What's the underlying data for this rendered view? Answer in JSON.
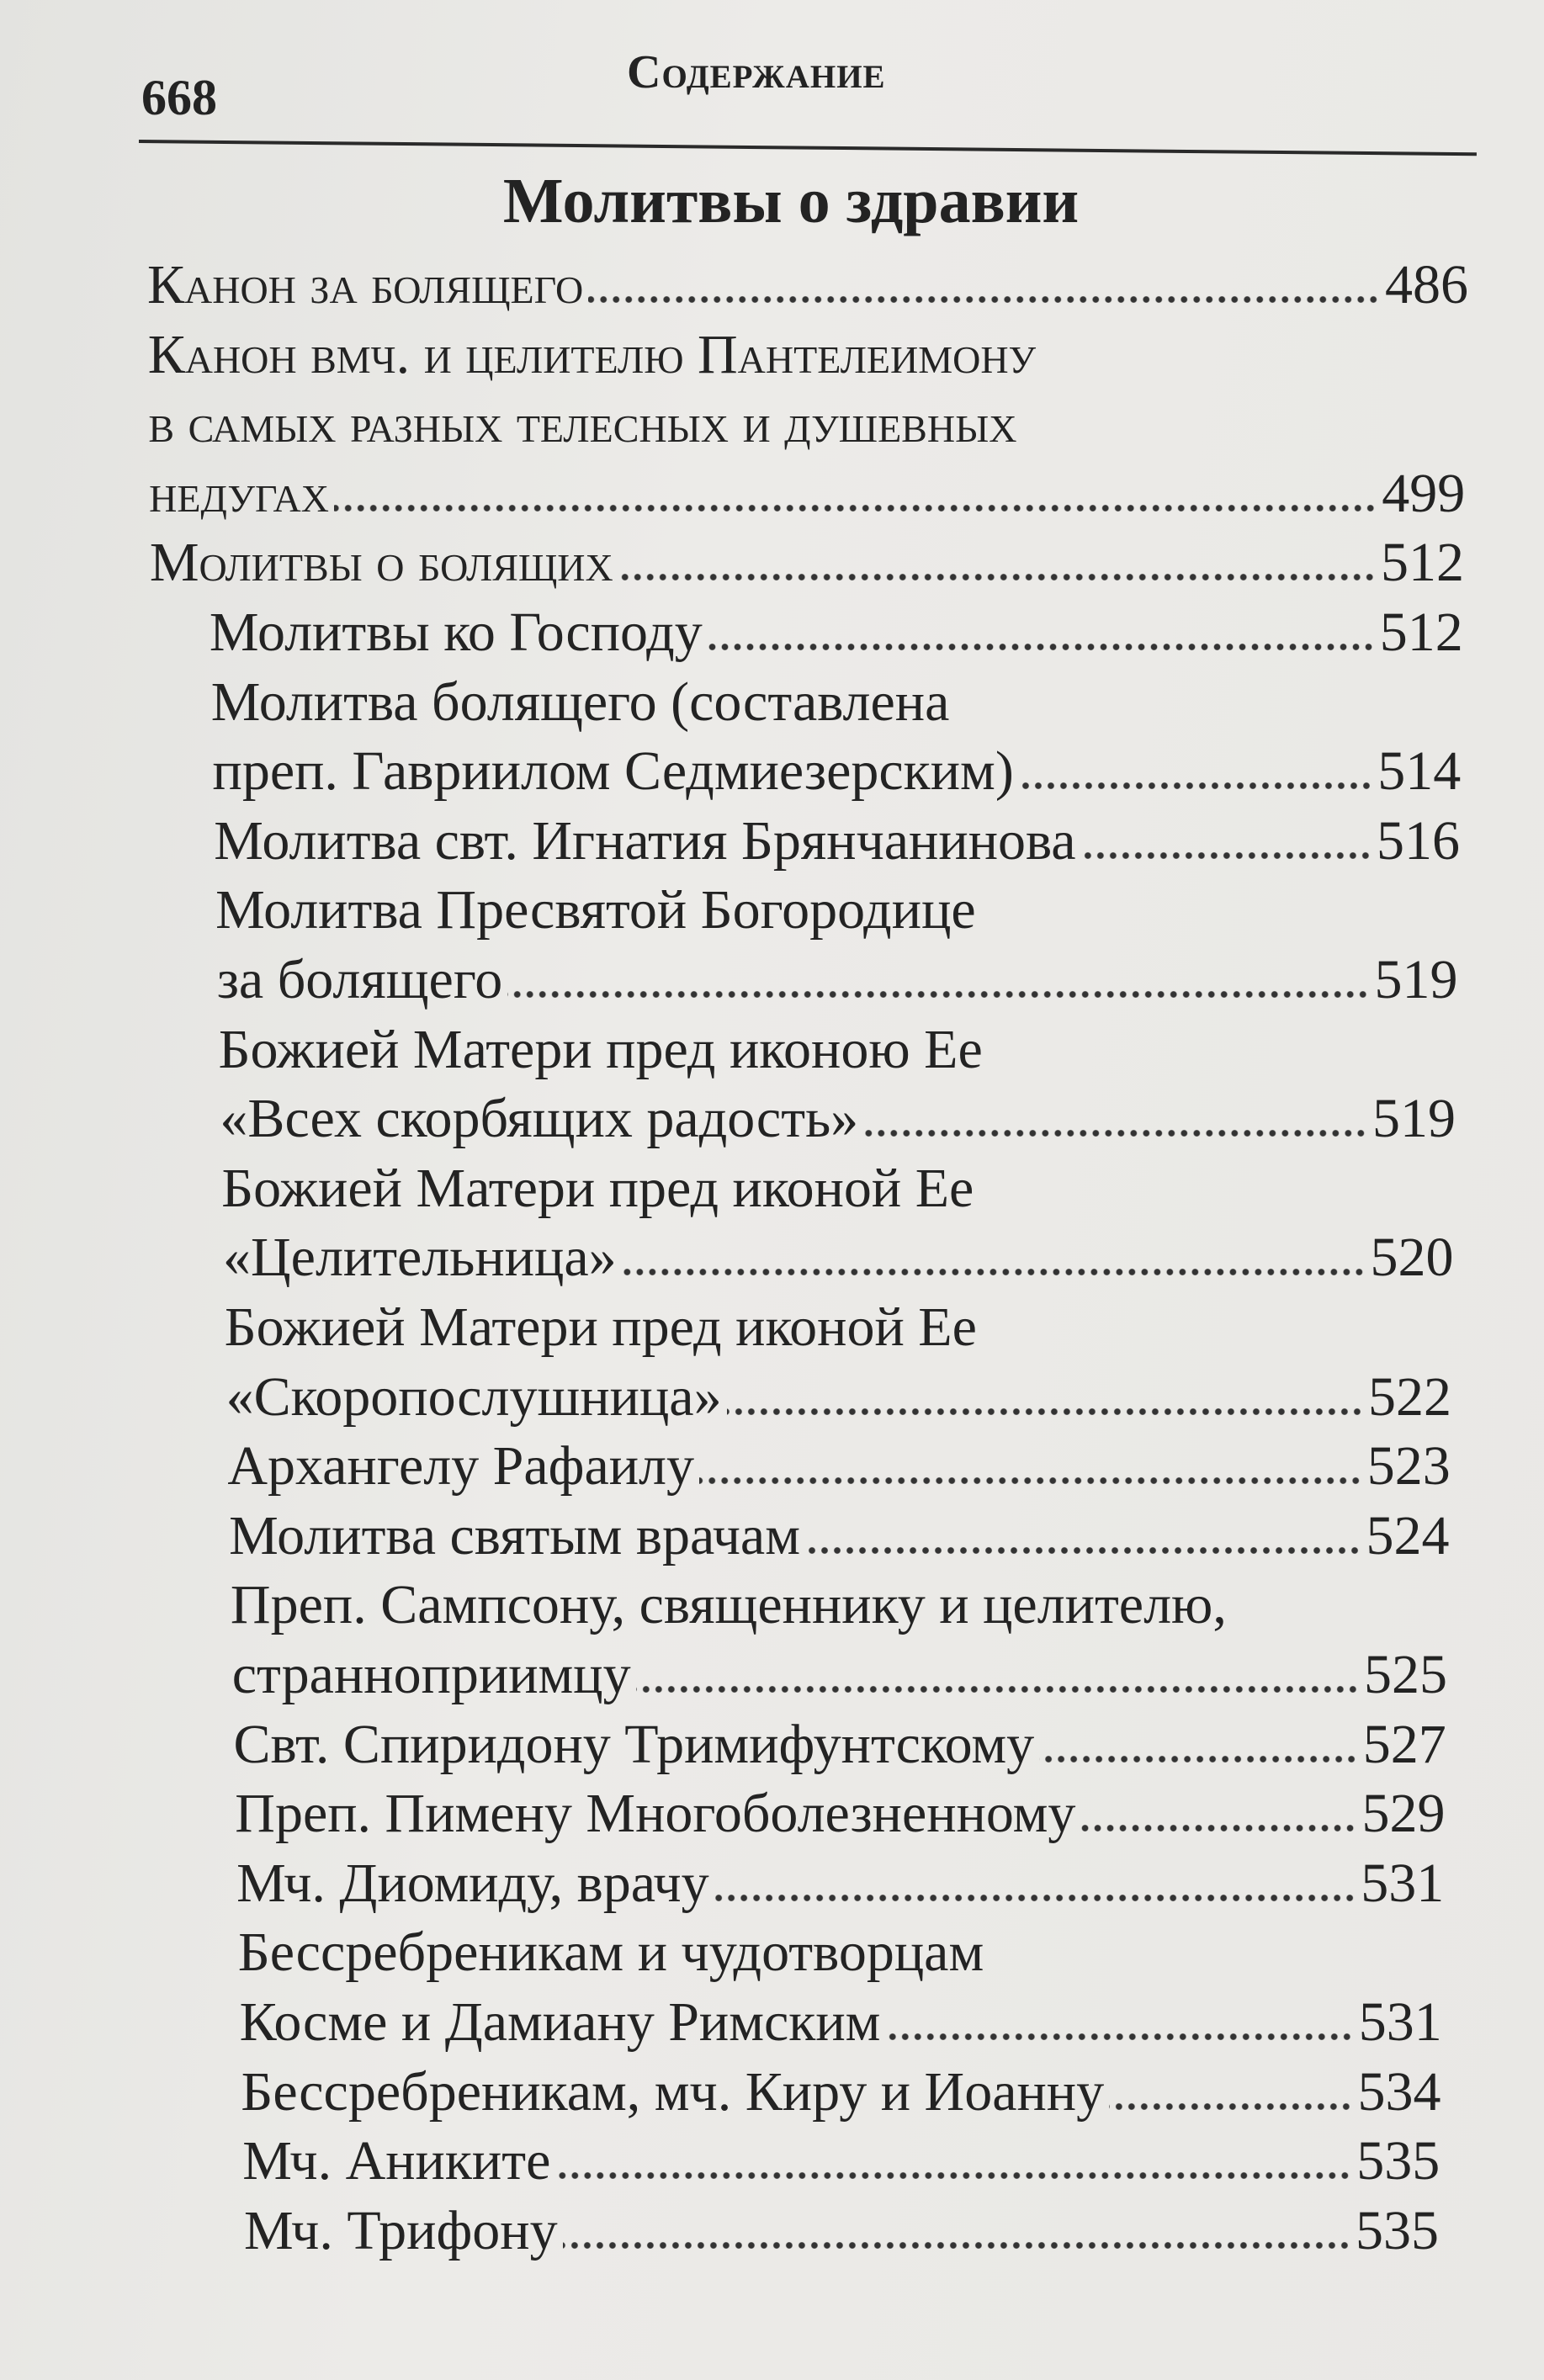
{
  "header": {
    "page_number": "668",
    "running_head": "Содержание"
  },
  "section_heading": "Молитвы о здравии",
  "entries": [
    {
      "lines": [
        "Канон за болящего"
      ],
      "page": "486",
      "level": 0,
      "small_caps": true
    },
    {
      "lines": [
        "Канон вмч. и целителю Пантелеимону",
        "в самых разных телесных и душевных",
        "недугах"
      ],
      "page": "499",
      "level": 0,
      "small_caps": true
    },
    {
      "lines": [
        "Молитвы о болящих"
      ],
      "page": "512",
      "level": 0,
      "small_caps": true
    },
    {
      "lines": [
        "Молитвы ко Господу"
      ],
      "page": "512",
      "level": 1
    },
    {
      "lines": [
        "Молитва болящего (составлена",
        "преп. Гавриилом Седмиезерским)"
      ],
      "page": "514",
      "level": 1
    },
    {
      "lines": [
        "Молитва свт. Игнатия Брянчанинова"
      ],
      "page": "516",
      "level": 1
    },
    {
      "lines": [
        "Молитва Пресвятой Богородице",
        "за болящего"
      ],
      "page": "519",
      "level": 1
    },
    {
      "lines": [
        "Божией Матери пред иконою Ее",
        "«Всех скорбящих радость»"
      ],
      "page": "519",
      "level": 1
    },
    {
      "lines": [
        "Божией Матери пред иконой Ее",
        "«Целительница»"
      ],
      "page": "520",
      "level": 1
    },
    {
      "lines": [
        "Божией Матери пред иконой Ее",
        "«Скоропослушница»"
      ],
      "page": "522",
      "level": 1
    },
    {
      "lines": [
        "Архангелу Рафаилу"
      ],
      "page": "523",
      "level": 1
    },
    {
      "lines": [
        "Молитва святым врачам"
      ],
      "page": "524",
      "level": 1
    },
    {
      "lines": [
        "Преп. Сампсону, священнику и целителю,",
        "странноприимцу"
      ],
      "page": "525",
      "level": 1
    },
    {
      "lines": [
        "Свт. Спиридону Тримифунтскому"
      ],
      "page": "527",
      "level": 1
    },
    {
      "lines": [
        "Преп. Пимену Многоболезненному"
      ],
      "page": "529",
      "level": 1
    },
    {
      "lines": [
        "Мч. Диомиду, врачу"
      ],
      "page": "531",
      "level": 1
    },
    {
      "lines": [
        "Бессребреникам и чудотворцам",
        "Косме и Дамиану Римским"
      ],
      "page": "531",
      "level": 1
    },
    {
      "lines": [
        "Бессребреникам, мч. Киру и Иоанну"
      ],
      "page": "534",
      "level": 1
    },
    {
      "lines": [
        "Мч. Аниките"
      ],
      "page": "535",
      "level": 1
    },
    {
      "lines": [
        "Мч. Трифону"
      ],
      "page": "535",
      "level": 1
    }
  ]
}
